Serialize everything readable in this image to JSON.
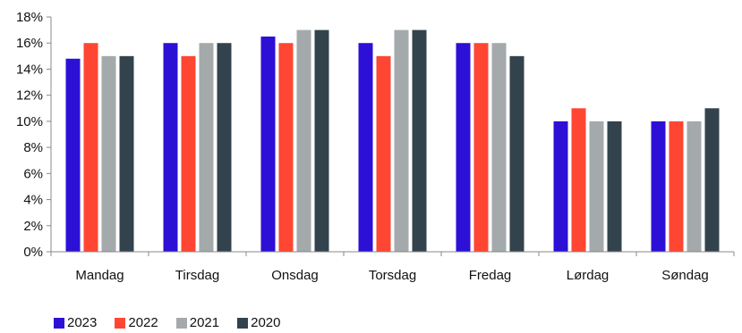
{
  "chart_data": {
    "type": "bar",
    "categories": [
      "Mandag",
      "Tirsdag",
      "Onsdag",
      "Torsdag",
      "Fredag",
      "Lørdag",
      "Søndag"
    ],
    "series": [
      {
        "name": "2023",
        "color": "#2c10d6",
        "values": [
          14.8,
          16,
          16.5,
          16,
          16,
          10,
          10
        ]
      },
      {
        "name": "2022",
        "color": "#ff4632",
        "values": [
          16,
          15,
          16,
          15,
          16,
          11,
          10
        ]
      },
      {
        "name": "2021",
        "color": "#a4a9ac",
        "values": [
          15,
          16,
          17,
          17,
          16,
          10,
          10
        ]
      },
      {
        "name": "2020",
        "color": "#33434d",
        "values": [
          15,
          16,
          17,
          17,
          15,
          10,
          11
        ]
      }
    ],
    "y_ticks": [
      "0%",
      "2%",
      "4%",
      "6%",
      "8%",
      "10%",
      "12%",
      "14%",
      "16%",
      "18%"
    ],
    "ylim": [
      0,
      18
    ],
    "grid": false,
    "legend_position": "bottom-left",
    "title": "",
    "xlabel": "",
    "ylabel": ""
  }
}
